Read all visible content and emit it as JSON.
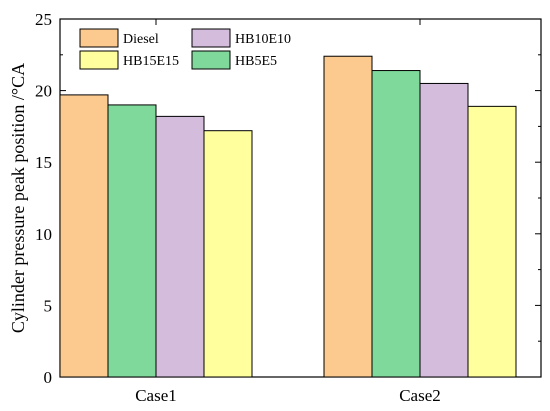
{
  "chart_data": {
    "type": "bar",
    "categories": [
      "Case1",
      "Case2"
    ],
    "series_order": [
      "Diesel",
      "HB5E5",
      "HB10E10",
      "HB15E15"
    ],
    "series": [
      {
        "name": "Diesel",
        "values": [
          19.7,
          22.4
        ],
        "color": "#fcc98e"
      },
      {
        "name": "HB5E5",
        "values": [
          19.0,
          21.4
        ],
        "color": "#7fd99a"
      },
      {
        "name": "HB10E10",
        "values": [
          18.2,
          20.5
        ],
        "color": "#d4bcdd"
      },
      {
        "name": "HB15E15",
        "values": [
          17.2,
          18.9
        ],
        "color": "#ffff9e"
      }
    ],
    "legend_order": [
      "Diesel",
      "HB10E10",
      "HB15E15",
      "HB5E5"
    ],
    "legend_placement": "top-left",
    "xlabel": "",
    "ylabel": "Cylinder pressure peak position /°CA",
    "ylim": [
      0,
      25
    ],
    "yticks": [
      "0",
      "5",
      "10",
      "15",
      "20",
      "25"
    ],
    "grid": false
  }
}
